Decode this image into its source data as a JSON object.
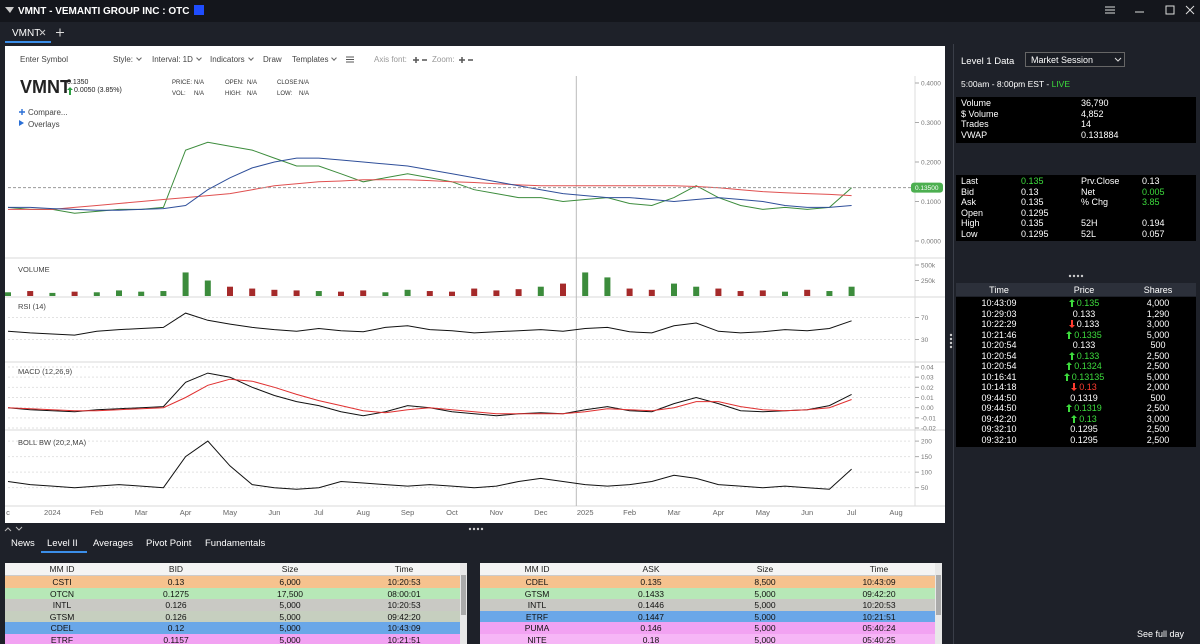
{
  "window": {
    "title": "VMNT - VEMANTI GROUP INC : OTC",
    "tab": "VMNT"
  },
  "toolbar": {
    "symbol_input": "Enter Symbol",
    "menus": [
      "Style:",
      "Interval: 1D",
      "Indicators",
      "Draw",
      "Templates",
      "Axis font:",
      "Zoom:"
    ]
  },
  "quote": {
    "symbol": "VMNT",
    "price": "0.1350",
    "change": "0.0050 (3.85%)",
    "fields": [
      {
        "label": "PRICE:",
        "value": "N/A"
      },
      {
        "label": "VOL:",
        "value": "N/A"
      },
      {
        "label": "OPEN:",
        "value": "N/A"
      },
      {
        "label": "HIGH:",
        "value": "N/A"
      },
      {
        "label": "CLOSE:",
        "value": "N/A"
      },
      {
        "label": "LOW:",
        "value": "N/A"
      }
    ],
    "links": [
      "Compare...",
      "Overlays"
    ]
  },
  "chart_data": [
    {
      "type": "line",
      "categories": [
        "c",
        null,
        "2024",
        null,
        "Feb",
        null,
        "Mar",
        null,
        "Apr",
        null,
        "May",
        null,
        "Jun",
        null,
        "Jul",
        null,
        "Aug",
        null,
        "Sep",
        null,
        "Oct",
        null,
        "Nov",
        null,
        "Dec",
        null,
        "2025",
        null,
        "Feb",
        null,
        "Mar",
        null,
        "Apr",
        null,
        "May",
        null,
        "Jun",
        null,
        "Jul",
        null,
        "Aug",
        null
      ],
      "ylim": [
        0,
        0.4
      ],
      "yticks": [
        {
          "value": 0,
          "label": "0.0000"
        },
        {
          "value": 0.1,
          "label": "0.1000"
        },
        {
          "value": 0.2,
          "label": "0.2000"
        },
        {
          "value": 0.3,
          "label": "0.3000"
        },
        {
          "value": 0.4,
          "label": "0.4000"
        }
      ],
      "series": [
        {
          "color": "#3c8c3c",
          "values": [
            0.085,
            0.08,
            0.08,
            0.07,
            0.075,
            0.08,
            0.08,
            0.085,
            0.23,
            0.25,
            0.24,
            0.23,
            0.21,
            0.19,
            0.19,
            0.17,
            0.15,
            0.16,
            0.17,
            0.16,
            0.15,
            0.13,
            0.12,
            0.11,
            0.11,
            0.1,
            0.105,
            0.11,
            0.095,
            0.09,
            0.11,
            0.14,
            0.11,
            0.09,
            0.08,
            0.085,
            0.08,
            0.085,
            0.135,
            null,
            null,
            null
          ]
        },
        {
          "color": "#e05050",
          "values": [
            0.08,
            0.08,
            0.08,
            0.085,
            0.09,
            0.095,
            0.1,
            0.105,
            0.11,
            0.115,
            0.12,
            0.13,
            0.14,
            0.145,
            0.15,
            0.152,
            0.155,
            0.155,
            0.155,
            0.153,
            0.15,
            0.148,
            0.145,
            0.142,
            0.14,
            0.14,
            0.14,
            0.14,
            0.14,
            0.14,
            0.14,
            0.138,
            0.135,
            0.13,
            0.125,
            0.122,
            0.12,
            0.118,
            0.115,
            null,
            null,
            null
          ]
        },
        {
          "color": "#2f4f9a",
          "values": [
            0.085,
            0.085,
            0.082,
            0.08,
            0.078,
            0.078,
            0.08,
            0.082,
            0.09,
            0.13,
            0.16,
            0.185,
            0.2,
            0.21,
            0.21,
            0.205,
            0.2,
            0.195,
            0.19,
            0.18,
            0.17,
            0.16,
            0.15,
            0.14,
            0.13,
            0.12,
            0.115,
            0.11,
            0.11,
            0.105,
            0.1,
            0.105,
            0.11,
            0.105,
            0.1,
            0.09,
            0.085,
            0.085,
            0.09,
            null,
            null,
            null
          ]
        }
      ],
      "price_marker": {
        "value": 0.135,
        "label": "0.13500",
        "color": "#4caf50"
      }
    },
    {
      "type": "bar",
      "title": "VOLUME",
      "ylim": [
        0,
        500000
      ],
      "yticks": [
        {
          "value": 250000,
          "label": "250k"
        },
        {
          "value": 500000,
          "label": "500k"
        }
      ],
      "up_color": "#3c8c3c",
      "down_color": "#a52a2a",
      "values": [
        60000,
        80000,
        50000,
        70000,
        60000,
        90000,
        70000,
        80000,
        380000,
        250000,
        150000,
        120000,
        100000,
        90000,
        80000,
        70000,
        90000,
        60000,
        100000,
        80000,
        70000,
        120000,
        90000,
        110000,
        150000,
        200000,
        380000,
        300000,
        120000,
        100000,
        200000,
        150000,
        120000,
        80000,
        90000,
        70000,
        100000,
        80000,
        150000,
        null,
        null,
        null
      ]
    },
    {
      "type": "line",
      "title": "RSI (14)",
      "ylim": [
        0,
        100
      ],
      "yticks": [
        30,
        70
      ],
      "series": [
        {
          "color": "#111111",
          "values": [
            45,
            42,
            40,
            38,
            45,
            48,
            50,
            52,
            78,
            65,
            58,
            52,
            48,
            45,
            50,
            46,
            44,
            52,
            55,
            48,
            46,
            42,
            44,
            46,
            48,
            45,
            50,
            52,
            44,
            42,
            55,
            60,
            45,
            42,
            44,
            48,
            46,
            50,
            64,
            null,
            null,
            null
          ]
        }
      ]
    },
    {
      "type": "line",
      "title": "MACD (12,26,9)",
      "ylim": [
        -0.02,
        0.04
      ],
      "yticks": [
        -0.02,
        -0.01,
        {
          "value": 0,
          "label": "0.00"
        },
        0.01,
        0.02,
        0.03,
        0.04
      ],
      "series": [
        {
          "color": "#111111",
          "values": [
            0.0,
            -0.002,
            -0.003,
            -0.004,
            -0.002,
            -0.001,
            0,
            0.001,
            0.025,
            0.034,
            0.03,
            0.02,
            0.012,
            0.006,
            0.002,
            -0.004,
            -0.008,
            -0.004,
            0.002,
            0,
            -0.004,
            -0.006,
            -0.008,
            -0.006,
            -0.005,
            -0.006,
            -0.002,
            0.001,
            -0.003,
            -0.004,
            0.004,
            0.01,
            0.004,
            -0.003,
            -0.004,
            -0.003,
            -0.002,
            0.002,
            0.013,
            null,
            null,
            null
          ]
        },
        {
          "color": "#e03030",
          "values": [
            0,
            -0.001,
            -0.002,
            -0.003,
            -0.003,
            -0.002,
            -0.001,
            0,
            0.01,
            0.022,
            0.028,
            0.026,
            0.02,
            0.013,
            0.007,
            0.002,
            -0.003,
            -0.005,
            -0.002,
            0,
            -0.002,
            -0.004,
            -0.006,
            -0.006,
            -0.006,
            -0.006,
            -0.004,
            -0.001,
            -0.002,
            -0.003,
            0,
            0.006,
            0.006,
            0.001,
            -0.002,
            -0.003,
            -0.002,
            0,
            0.008,
            null,
            null,
            null
          ]
        }
      ]
    },
    {
      "type": "line",
      "title": "BOLL BW (20,2,MA)",
      "ylim": [
        20,
        210
      ],
      "yticks": [
        50,
        100,
        150,
        200
      ],
      "series": [
        {
          "color": "#111111",
          "values": [
            70,
            60,
            55,
            50,
            55,
            60,
            55,
            50,
            150,
            200,
            120,
            60,
            50,
            45,
            50,
            70,
            65,
            60,
            55,
            60,
            55,
            50,
            55,
            70,
            80,
            70,
            60,
            55,
            60,
            70,
            90,
            80,
            60,
            55,
            50,
            55,
            50,
            45,
            110,
            null,
            null,
            null
          ]
        }
      ]
    }
  ],
  "level1": {
    "title": "Level 1 Data",
    "session": "Market Session",
    "hours": "5:00am - 8:00pm EST - ",
    "status": "LIVE",
    "status_color": "#3ddc3d",
    "stats": [
      [
        "Volume",
        "36,790"
      ],
      [
        "$ Volume",
        "4,852"
      ],
      [
        "Trades",
        "14"
      ],
      [
        "VWAP",
        "0.131884"
      ]
    ],
    "quote_left": [
      {
        "label": "Last",
        "value": "0.135",
        "color": "#3ddc3d"
      },
      {
        "label": "Bid",
        "value": "0.13"
      },
      {
        "label": "Ask",
        "value": "0.135"
      },
      {
        "label": "Open",
        "value": "0.1295"
      },
      {
        "label": "High",
        "value": "0.135"
      },
      {
        "label": "Low",
        "value": "0.1295"
      }
    ],
    "quote_right": [
      {
        "label": "Prv.Close",
        "value": "0.13"
      },
      {
        "label": "Net",
        "value": "0.005",
        "color": "#3ddc3d"
      },
      {
        "label": "% Chg",
        "value": "3.85",
        "color": "#3ddc3d"
      },
      {
        "label": "52H",
        "value": "0.194"
      },
      {
        "label": "52L",
        "value": "0.057"
      }
    ]
  },
  "time_sales": {
    "headers": [
      "Time",
      "Price",
      "Shares"
    ],
    "arrow_colors": {
      "up": "#3ddc3d",
      "down": "#ff3b30"
    },
    "rows": [
      {
        "time": "10:43:09",
        "price": "0.135",
        "shares": "4,000",
        "dir": "up",
        "color": "#3ddc3d"
      },
      {
        "time": "10:29:03",
        "price": "0.133",
        "shares": "1,290",
        "dir": "none",
        "color": "#ffffff"
      },
      {
        "time": "10:22:29",
        "price": "0.133",
        "shares": "3,000",
        "dir": "down",
        "color": "#ffffff"
      },
      {
        "time": "10:21:46",
        "price": "0.1335",
        "shares": "5,000",
        "dir": "up",
        "color": "#3ddc3d"
      },
      {
        "time": "10:20:54",
        "price": "0.133",
        "shares": "500",
        "dir": "none",
        "color": "#ffffff"
      },
      {
        "time": "10:20:54",
        "price": "0.133",
        "shares": "2,500",
        "dir": "up",
        "color": "#3ddc3d"
      },
      {
        "time": "10:20:54",
        "price": "0.1324",
        "shares": "2,500",
        "dir": "up",
        "color": "#3ddc3d"
      },
      {
        "time": "10:16:41",
        "price": "0.13135",
        "shares": "5,000",
        "dir": "up",
        "color": "#3ddc3d"
      },
      {
        "time": "10:14:18",
        "price": "0.13",
        "shares": "2,000",
        "dir": "down",
        "color": "#ff3b30"
      },
      {
        "time": "09:44:50",
        "price": "0.1319",
        "shares": "500",
        "dir": "none",
        "color": "#ffffff"
      },
      {
        "time": "09:44:50",
        "price": "0.1319",
        "shares": "2,500",
        "dir": "up",
        "color": "#3ddc3d"
      },
      {
        "time": "09:42:20",
        "price": "0.13",
        "shares": "3,000",
        "dir": "up",
        "color": "#3ddc3d"
      },
      {
        "time": "09:32:10",
        "price": "0.1295",
        "shares": "2,500",
        "dir": "none",
        "color": "#ffffff"
      },
      {
        "time": "09:32:10",
        "price": "0.1295",
        "shares": "2,500",
        "dir": "none",
        "color": "#ffffff"
      }
    ]
  },
  "level2": {
    "tabs": [
      "News",
      "Level II",
      "Averages",
      "Pivot Point",
      "Fundamentals"
    ],
    "active_tab": 1,
    "bid": {
      "headers": [
        "MM ID",
        "BID",
        "Size",
        "Time"
      ],
      "rows": [
        {
          "cells": [
            "CSTI",
            "0.13",
            "6,000",
            "10:20:53"
          ],
          "color": "#f6c28e"
        },
        {
          "cells": [
            "OTCN",
            "0.1275",
            "17,500",
            "08:00:01"
          ],
          "color": "#b7e8b7"
        },
        {
          "cells": [
            "INTL",
            "0.126",
            "5,000",
            "10:20:53"
          ],
          "color": "#c9c9c4"
        },
        {
          "cells": [
            "GTSM",
            "0.126",
            "5,000",
            "09:42:20"
          ],
          "color": "#c6cfbf"
        },
        {
          "cells": [
            "CDEL",
            "0.12",
            "5,000",
            "10:43:09"
          ],
          "color": "#6aa7e8"
        },
        {
          "cells": [
            "ETRF",
            "0.1157",
            "5,000",
            "10:21:51"
          ],
          "color": "#f2a2f2"
        }
      ]
    },
    "ask": {
      "headers": [
        "MM ID",
        "ASK",
        "Size",
        "Time"
      ],
      "rows": [
        {
          "cells": [
            "CDEL",
            "0.135",
            "8,500",
            "10:43:09"
          ],
          "color": "#f6c28e"
        },
        {
          "cells": [
            "GTSM",
            "0.1433",
            "5,000",
            "09:42:20"
          ],
          "color": "#b7e8b7"
        },
        {
          "cells": [
            "INTL",
            "0.1446",
            "5,000",
            "10:20:53"
          ],
          "color": "#c9c9c4"
        },
        {
          "cells": [
            "ETRF",
            "0.1447",
            "5,000",
            "10:21:51"
          ],
          "color": "#6aa7e8"
        },
        {
          "cells": [
            "PUMA",
            "0.146",
            "5,000",
            "05:40:24"
          ],
          "color": "#f2a2f2"
        },
        {
          "cells": [
            "NITE",
            "0.18",
            "5,000",
            "05:40:25"
          ],
          "color": "#f6b6f6"
        }
      ]
    },
    "see_full_day": "See full day"
  }
}
